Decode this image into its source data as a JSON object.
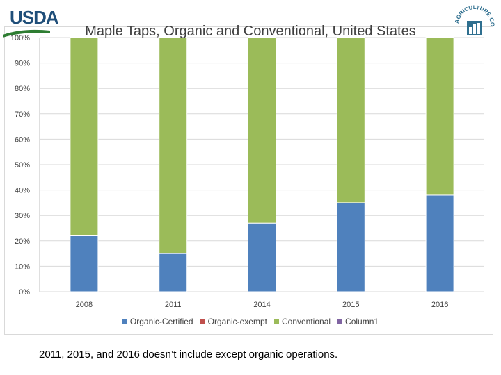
{
  "header": {
    "logo_text": "USDA",
    "ag_logo_text": "AGRICULTURE COUNTS"
  },
  "chart_data": {
    "type": "bar",
    "stacked": true,
    "title": "Maple Taps, Organic and Conventional, United States",
    "categories": [
      "2008",
      "2011",
      "2014",
      "2015",
      "2016"
    ],
    "series": [
      {
        "name": "Organic-Certified",
        "values": [
          22,
          15,
          27,
          35,
          38
        ],
        "color": "#4f81bd"
      },
      {
        "name": "Organic-exempt",
        "values": [
          0,
          0,
          0,
          0,
          0
        ],
        "color": "#c0504d"
      },
      {
        "name": "Conventional",
        "values": [
          78,
          85,
          73,
          65,
          62
        ],
        "color": "#9bbb59"
      },
      {
        "name": "Column1",
        "values": [
          0,
          0,
          0,
          0,
          0
        ],
        "color": "#8064a2"
      }
    ],
    "yticks": [
      "0%",
      "10%",
      "20%",
      "30%",
      "40%",
      "50%",
      "60%",
      "70%",
      "80%",
      "90%",
      "100%"
    ],
    "ylim": [
      0,
      100
    ],
    "grid": true,
    "legend_position": "bottom"
  },
  "footnote": "2011, 2015, and 2016  doesn’t include except organic operations."
}
